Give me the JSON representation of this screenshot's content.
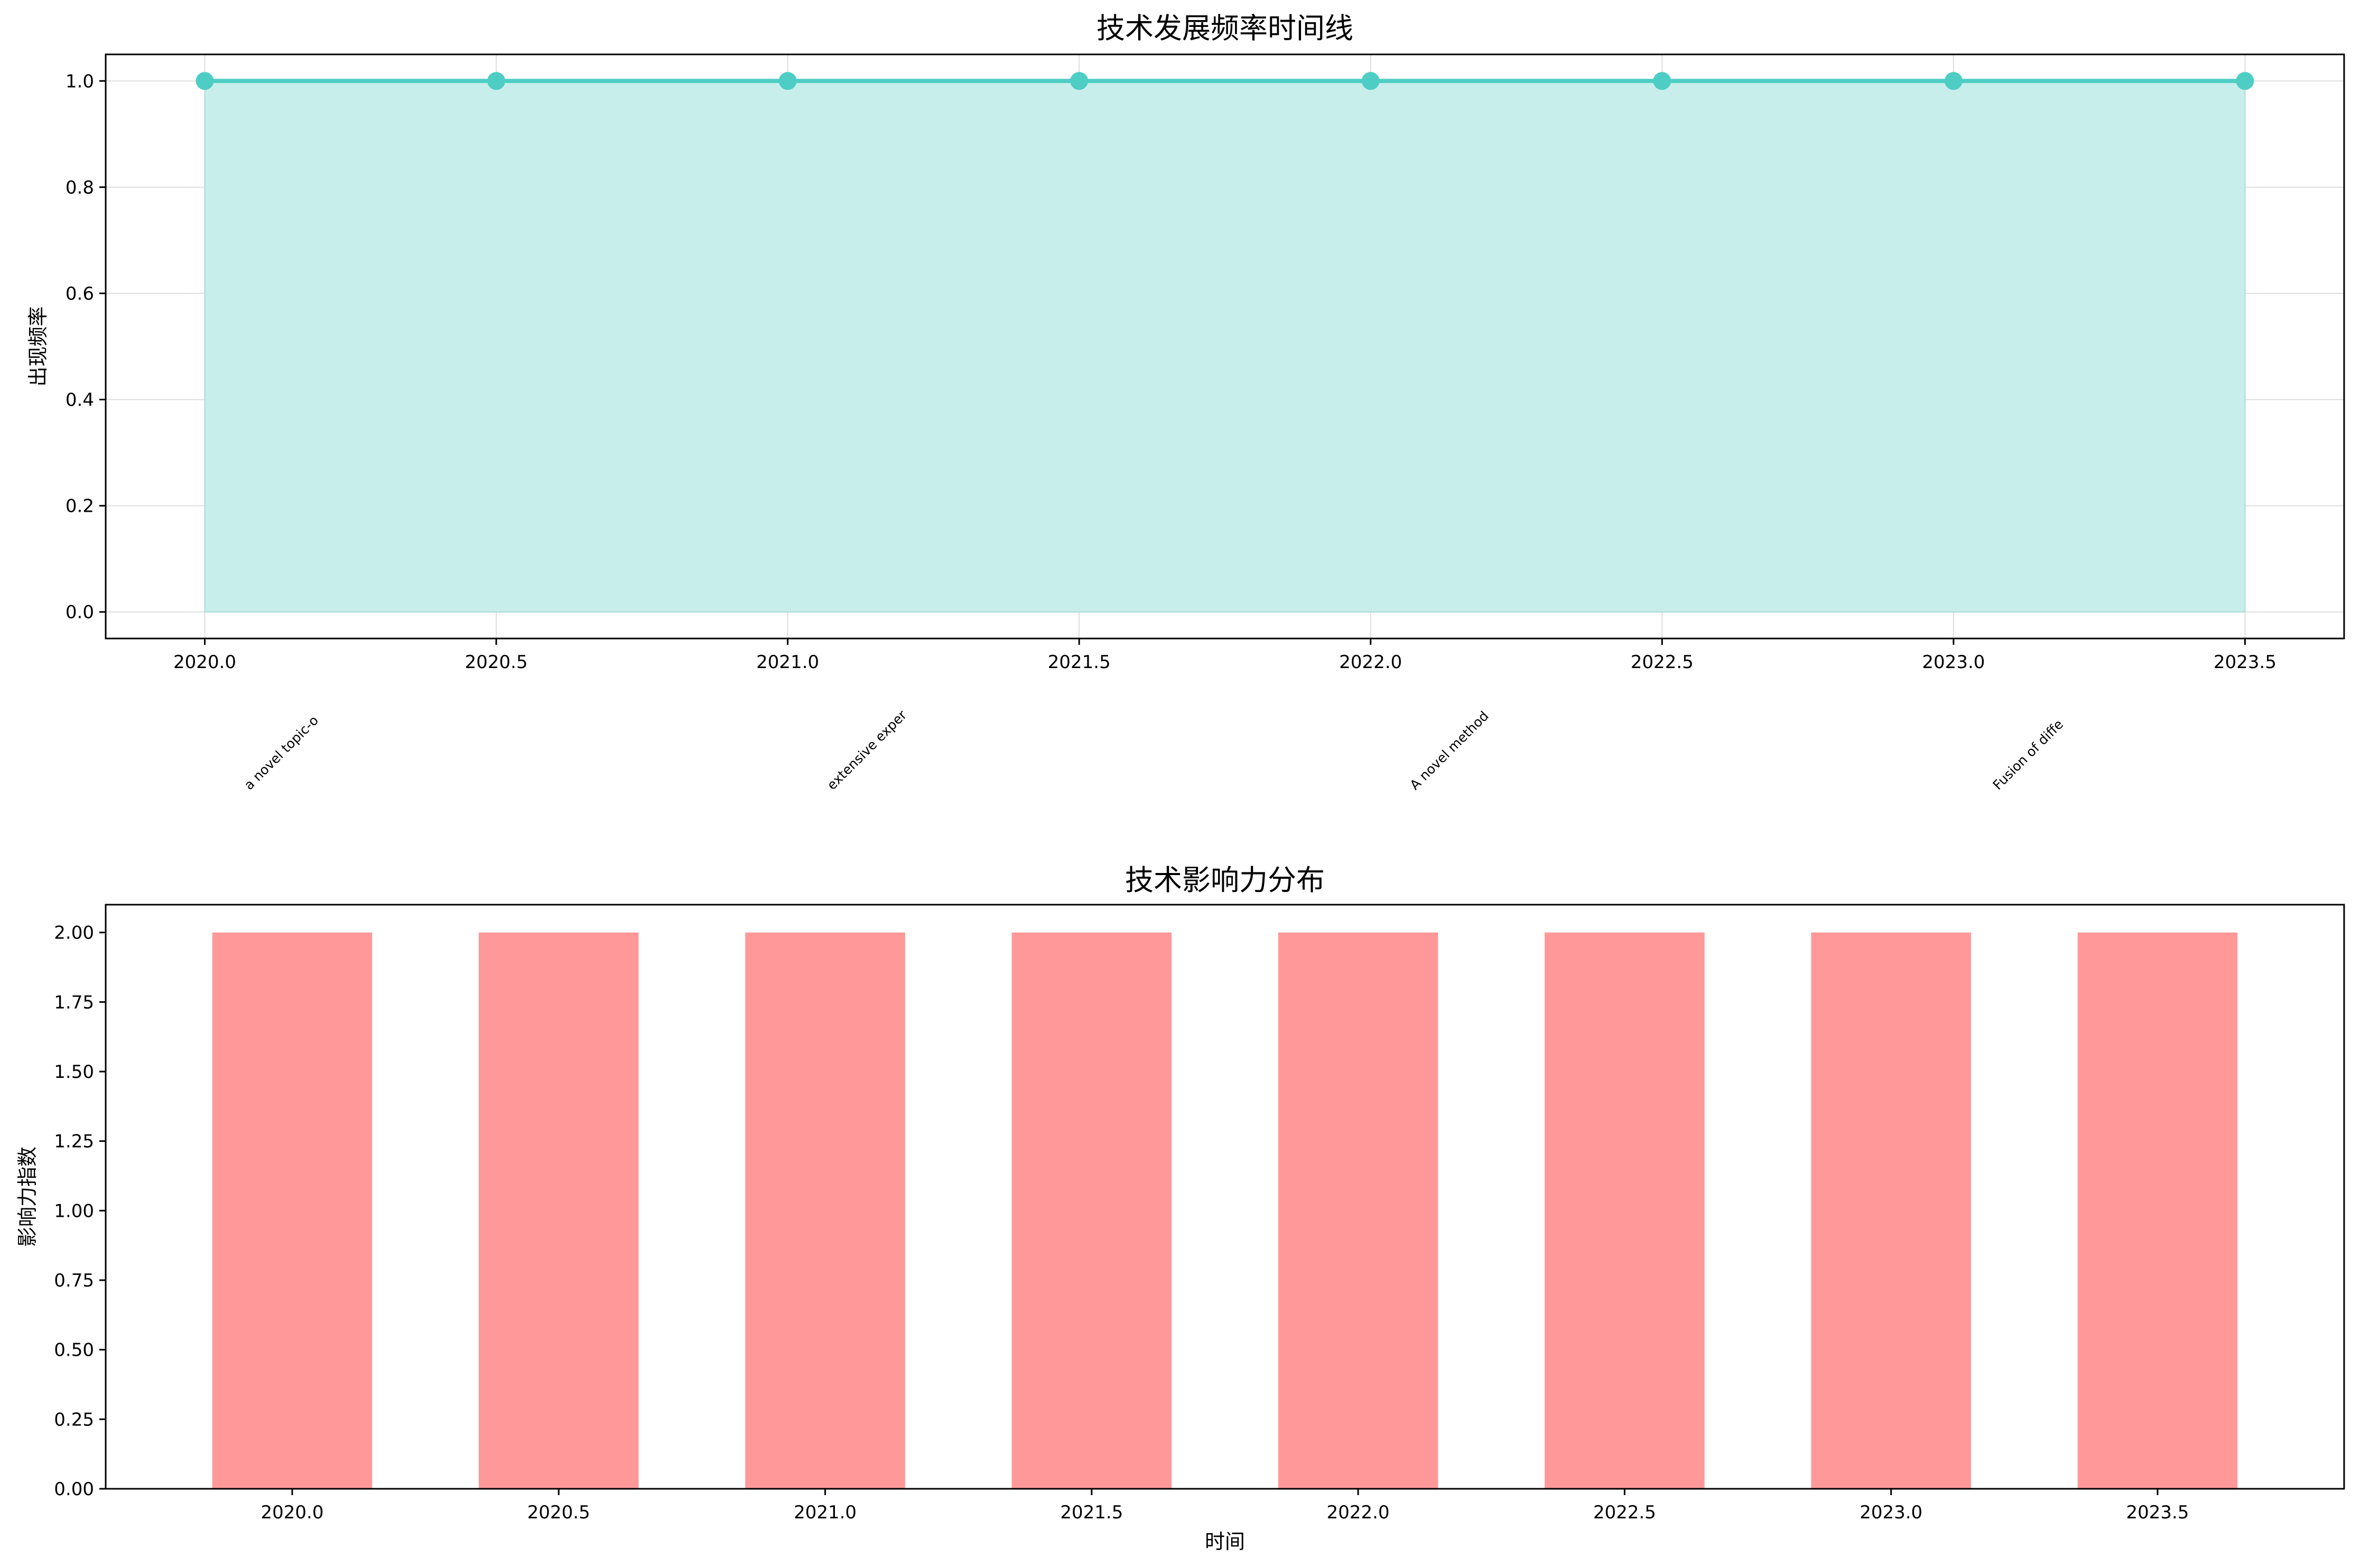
{
  "chart_data": [
    {
      "type": "area",
      "title": "技术发展频率时间线",
      "xlabel": "",
      "ylabel": "出现频率",
      "x": [
        2020.0,
        2020.5,
        2021.0,
        2021.5,
        2022.0,
        2022.5,
        2023.0,
        2023.5
      ],
      "values": [
        1,
        1,
        1,
        1,
        1,
        1,
        1,
        1
      ],
      "xlim": [
        2019.83,
        2023.67
      ],
      "ylim": [
        -0.05,
        1.05
      ],
      "xticks": [
        2020.0,
        2020.5,
        2021.0,
        2021.5,
        2022.0,
        2022.5,
        2023.0,
        2023.5
      ],
      "xtick_labels": [
        "2020.0",
        "2020.5",
        "2021.0",
        "2021.5",
        "2022.0",
        "2022.5",
        "2023.0",
        "2023.5"
      ],
      "yticks": [
        0.0,
        0.2,
        0.4,
        0.6,
        0.8,
        1.0
      ],
      "ytick_labels": [
        "0.0",
        "0.2",
        "0.4",
        "0.6",
        "0.8",
        "1.0"
      ],
      "grid": true,
      "line_color": "#4ECDC4",
      "fill_color": "#C8EEEB",
      "annotations": [
        {
          "x": 2020.0,
          "text": "a novel topic-o"
        },
        {
          "x": 2021.0,
          "text": "extensive exper"
        },
        {
          "x": 2022.0,
          "text": "A novel method"
        },
        {
          "x": 2023.0,
          "text": "Fusion of diffe"
        }
      ]
    },
    {
      "type": "bar",
      "title": "技术影响力分布",
      "xlabel": "时间",
      "ylabel": "影响力指数",
      "categories": [
        "2020.0",
        "2020.5",
        "2021.0",
        "2021.5",
        "2022.0",
        "2022.5",
        "2023.0",
        "2023.5"
      ],
      "values": [
        2,
        2,
        2,
        2,
        2,
        2,
        2,
        2
      ],
      "ylim": [
        0,
        2.1
      ],
      "yticks": [
        0.0,
        0.25,
        0.5,
        0.75,
        1.0,
        1.25,
        1.5,
        1.75,
        2.0
      ],
      "ytick_labels": [
        "0.00",
        "0.25",
        "0.50",
        "0.75",
        "1.00",
        "1.25",
        "1.50",
        "1.75",
        "2.00"
      ],
      "grid": false,
      "bar_color": "#FF9999"
    }
  ]
}
